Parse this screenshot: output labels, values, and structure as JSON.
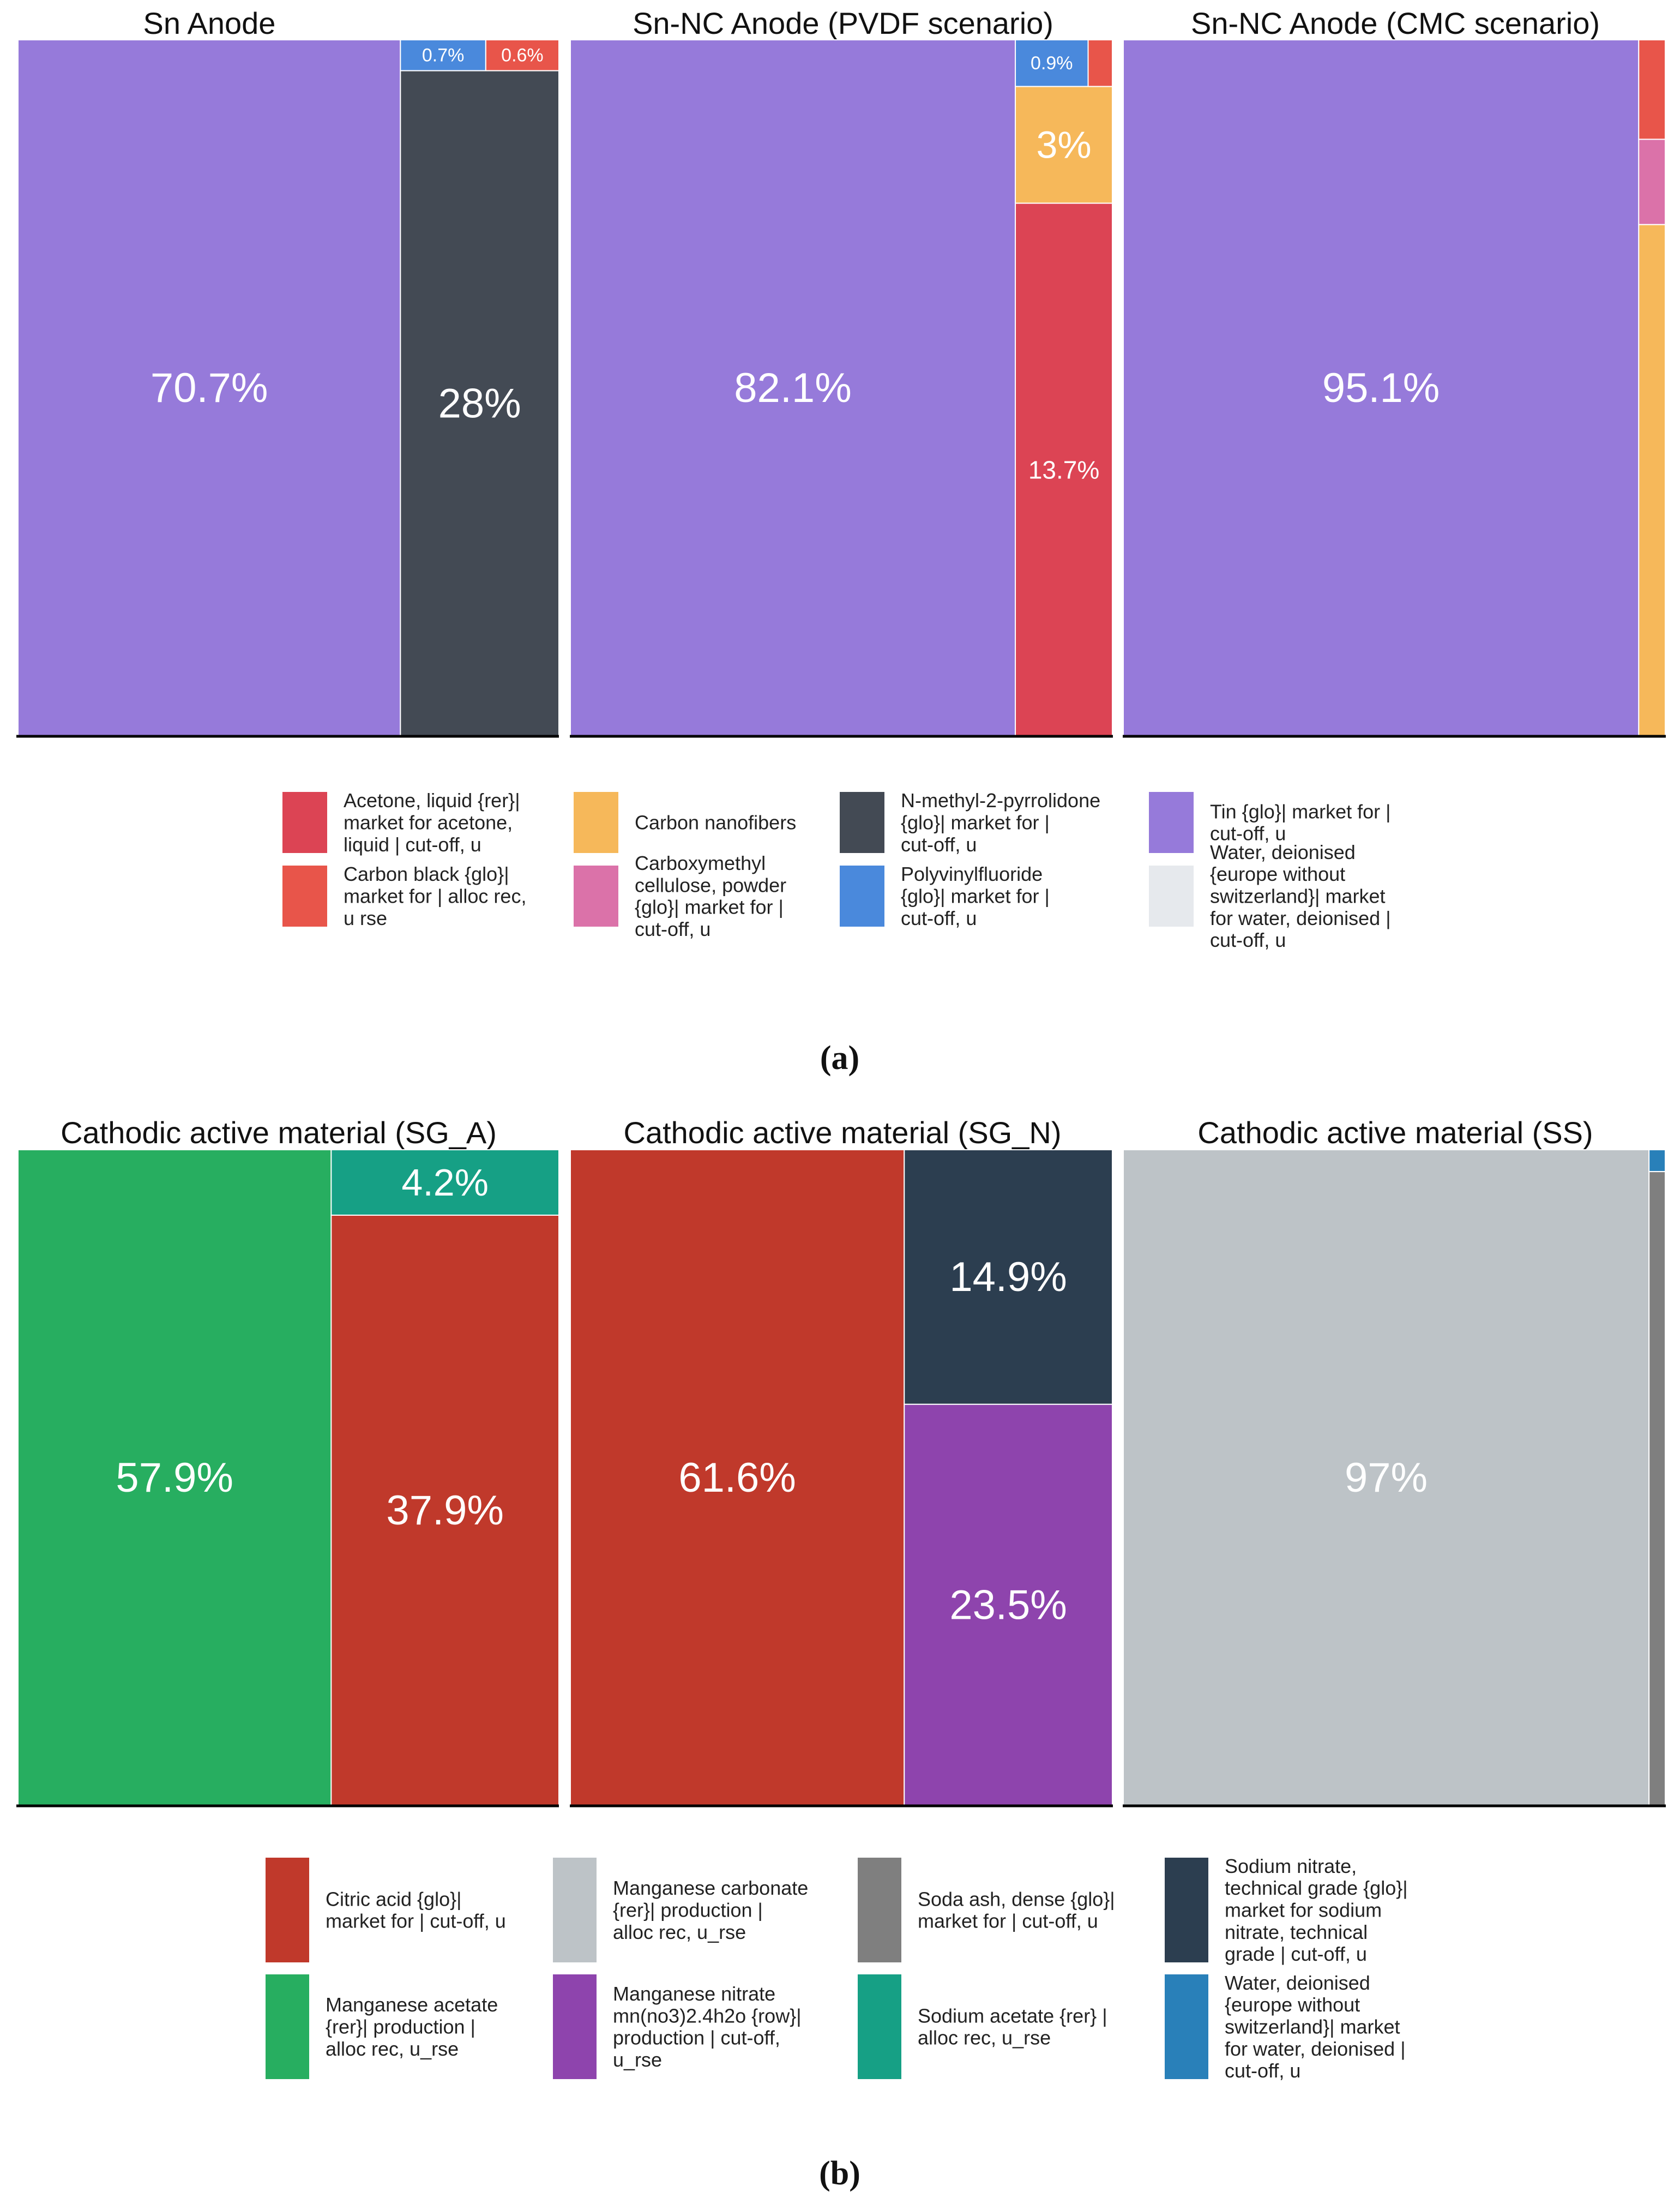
{
  "figure": {
    "part_a_label": "(a)",
    "part_b_label": "(b)"
  },
  "chart_data": [
    {
      "type": "treemap",
      "part": "a",
      "title": "Sn Anode",
      "items": [
        {
          "name": "Tin {glo}| market for | cut-off, u",
          "value": 70.7,
          "label": "70.7%"
        },
        {
          "name": "N-methyl-2-pyrrolidone {glo}| market for | cut-off, u",
          "value": 28.0,
          "label": "28%"
        },
        {
          "name": "Polyvinylfluoride {glo}| market for | cut-off, u",
          "value": 0.7,
          "label": "0.7%"
        },
        {
          "name": "Carbon black {glo}| market for | alloc rec, u rse",
          "value": 0.6,
          "label": "0.6%"
        }
      ]
    },
    {
      "type": "treemap",
      "part": "a",
      "title": "Sn-NC Anode (PVDF scenario)",
      "items": [
        {
          "name": "Tin {glo}| market for | cut-off, u",
          "value": 82.1,
          "label": "82.1%"
        },
        {
          "name": "Acetone, liquid {rer}| market for acetone, liquid | cut-off, u",
          "value": 13.7,
          "label": "13.7%"
        },
        {
          "name": "Carbon nanofibers",
          "value": 3.0,
          "label": "3%"
        },
        {
          "name": "Polyvinylfluoride {glo}| market for | cut-off, u",
          "value": 0.9,
          "label": "0.9%"
        },
        {
          "name": "Carbon black {glo}| market for | alloc rec, u rse",
          "value": 0.3,
          "label": ""
        }
      ]
    },
    {
      "type": "treemap",
      "part": "a",
      "title": "Sn-NC Anode (CMC scenario)",
      "items": [
        {
          "name": "Tin {glo}| market for | cut-off, u",
          "value": 95.1,
          "label": "95.1%"
        },
        {
          "name": "Carbon nanofibers",
          "value": 3.6,
          "label": ""
        },
        {
          "name": "Carboxymethyl cellulose, powder {glo}| market for | cut-off, u",
          "value": 0.6,
          "label": ""
        },
        {
          "name": "Carbon black {glo}| market for | alloc rec, u rse",
          "value": 0.7,
          "label": ""
        }
      ]
    },
    {
      "type": "treemap",
      "part": "b",
      "title": "Cathodic active material (SG_A)",
      "items": [
        {
          "name": "Manganese acetate {rer}| production | alloc rec, u_rse",
          "value": 57.9,
          "label": "57.9%"
        },
        {
          "name": "Citric acid {glo}| market for | cut-off, u",
          "value": 37.9,
          "label": "37.9%"
        },
        {
          "name": "Sodium acetate {rer} | alloc rec, u_rse",
          "value": 4.2,
          "label": "4.2%"
        }
      ]
    },
    {
      "type": "treemap",
      "part": "b",
      "title": "Cathodic active material (SG_N)",
      "items": [
        {
          "name": "Citric acid {glo}| market for | cut-off, u",
          "value": 61.6,
          "label": "61.6%"
        },
        {
          "name": "Manganese nitrate mn(no3)2.4h2o {row}| production | cut-off, u_rse",
          "value": 23.5,
          "label": "23.5%"
        },
        {
          "name": "Sodium nitrate, technical grade {glo}| market for sodium nitrate, technical grade | cut-off, u",
          "value": 14.9,
          "label": "14.9%"
        }
      ]
    },
    {
      "type": "treemap",
      "part": "b",
      "title": "Cathodic active material (SS)",
      "items": [
        {
          "name": "Manganese carbonate {rer}| production | alloc rec, u_rse",
          "value": 97.0,
          "label": "97%"
        },
        {
          "name": "Soda ash, dense {glo}| market for | cut-off, u",
          "value": 2.9,
          "label": ""
        },
        {
          "name": "Water, deionised {europe without switzerland}| market for water, deionised | cut-off, u",
          "value": 0.1,
          "label": ""
        }
      ]
    }
  ],
  "legends": {
    "a": [
      {
        "label": "Acetone, liquid {rer}| market for acetone, liquid | cut-off, u",
        "color": "#DC4454",
        "lines": [
          "Acetone, liquid {rer}|",
          "market for acetone,",
          "liquid | cut-off, u"
        ]
      },
      {
        "label": "Carbon black {glo}| market for | alloc rec, u rse",
        "color": "#E8554A",
        "lines": [
          "Carbon black {glo}|",
          "market for | alloc rec,",
          "u rse"
        ]
      },
      {
        "label": "Carbon nanofibers",
        "color": "#F6B85A",
        "lines": [
          "Carbon nanofibers"
        ]
      },
      {
        "label": "Carboxymethyl cellulose, powder {glo}| market for | cut-off, u",
        "color": "#DB72A9",
        "lines": [
          "Carboxymethyl",
          "cellulose, powder",
          "{glo}| market for |",
          "cut-off, u"
        ]
      },
      {
        "label": "N-methyl-2-pyrrolidone {glo}| market for | cut-off, u",
        "color": "#434A54",
        "lines": [
          "N-methyl-2-pyrrolidone",
          "{glo}| market for |",
          "cut-off, u"
        ]
      },
      {
        "label": "Polyvinylfluoride {glo}| market for | cut-off, u",
        "color": "#4A89DC",
        "lines": [
          "Polyvinylfluoride",
          "{glo}| market for |",
          "cut-off, u"
        ]
      },
      {
        "label": "Tin {glo}| market for | cut-off, u",
        "color": "#967ADA",
        "lines": [
          "Tin {glo}| market for |",
          "cut-off, u"
        ]
      },
      {
        "label": "Water, deionised {europe without switzerland}| market for water, deionised | cut-off, u",
        "color": "#E6E9ED",
        "lines": [
          "Water, deionised",
          "{europe without",
          "switzerland}| market",
          "for water, deionised |",
          "cut-off, u"
        ]
      }
    ],
    "b": [
      {
        "label": "Citric acid {glo}| market for | cut-off, u",
        "color": "#C0392B",
        "lines": [
          "Citric acid {glo}|",
          "market for | cut-off, u"
        ]
      },
      {
        "label": "Manganese acetate {rer}| production | alloc rec, u_rse",
        "color": "#27AE60",
        "lines": [
          "Manganese acetate",
          "{rer}| production |",
          "alloc rec, u_rse"
        ]
      },
      {
        "label": "Manganese carbonate {rer}| production | alloc rec, u_rse",
        "color": "#BDC3C7",
        "lines": [
          "Manganese carbonate",
          "{rer}| production |",
          "alloc rec, u_rse"
        ]
      },
      {
        "label": "Manganese nitrate mn(no3)2.4h2o {row}| production | cut-off, u_rse",
        "color": "#8E44AD",
        "lines": [
          "Manganese nitrate",
          "mn(no3)2.4h2o {row}|",
          "production | cut-off,",
          "u_rse"
        ]
      },
      {
        "label": "Soda ash, dense {glo}| market for | cut-off, u",
        "color": "#7F7F7F",
        "lines": [
          "Soda ash, dense {glo}|",
          "market for | cut-off, u"
        ]
      },
      {
        "label": "Sodium acetate {rer} | alloc rec, u_rse",
        "color": "#16A085",
        "lines": [
          "Sodium acetate {rer} |",
          "alloc rec, u_rse"
        ]
      },
      {
        "label": "Sodium nitrate, technical grade {glo}| market for sodium nitrate, technical grade | cut-off, u",
        "color": "#2C3E50",
        "lines": [
          "Sodium nitrate,",
          "technical grade {glo}|",
          "market for sodium",
          "nitrate, technical",
          "grade | cut-off, u"
        ]
      },
      {
        "label": "Water, deionised {europe without switzerland}| market for water, deionised | cut-off, u",
        "color": "#2980B9",
        "lines": [
          "Water, deionised",
          "{europe without",
          "switzerland}| market",
          "for water, deionised |",
          "cut-off, u"
        ]
      }
    ]
  }
}
